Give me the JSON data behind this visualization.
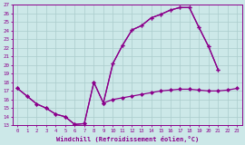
{
  "xlabel": "Windchill (Refroidissement éolien,°C)",
  "xlim": [
    -0.5,
    23.5
  ],
  "ylim": [
    13,
    27
  ],
  "yticks": [
    13,
    14,
    15,
    16,
    17,
    18,
    19,
    20,
    21,
    22,
    23,
    24,
    25,
    26,
    27
  ],
  "xticks": [
    0,
    1,
    2,
    3,
    4,
    5,
    6,
    7,
    8,
    9,
    10,
    11,
    12,
    13,
    14,
    15,
    16,
    17,
    18,
    19,
    20,
    21,
    22,
    23
  ],
  "bg_color": "#cce8e8",
  "grid_color": "#aacccc",
  "line_color": "#8b008b",
  "line1_x": [
    0,
    1,
    2,
    3,
    4,
    5,
    6,
    7,
    8,
    9,
    10,
    11,
    12,
    13,
    14,
    15,
    16,
    17,
    18,
    19,
    20,
    21
  ],
  "line1_y": [
    17.3,
    16.4,
    15.5,
    15.0,
    14.3,
    14.0,
    13.1,
    13.2,
    18.0,
    15.6,
    20.2,
    22.3,
    24.1,
    24.6,
    25.5,
    25.9,
    26.4,
    26.7,
    26.7,
    24.4,
    22.2,
    19.5
  ],
  "line2_x": [
    0,
    1,
    2,
    3,
    4,
    5,
    6,
    7,
    8,
    9,
    10,
    11,
    12,
    13,
    14,
    15,
    16,
    17,
    18,
    19,
    20,
    21,
    22,
    23
  ],
  "line2_y": [
    17.3,
    16.4,
    15.5,
    15.0,
    14.3,
    14.0,
    13.1,
    13.2,
    18.0,
    15.6,
    16.0,
    16.2,
    16.4,
    16.6,
    16.8,
    17.0,
    17.1,
    17.2,
    17.2,
    17.1,
    17.0,
    17.0,
    17.1,
    17.3
  ],
  "line3_x": [
    9,
    10,
    11,
    12,
    13,
    14,
    15,
    16,
    17,
    18,
    19,
    20,
    21
  ],
  "line3_y": [
    15.6,
    20.2,
    22.3,
    24.1,
    24.6,
    25.5,
    25.9,
    26.4,
    26.7,
    26.7,
    24.4,
    22.2,
    19.5
  ]
}
